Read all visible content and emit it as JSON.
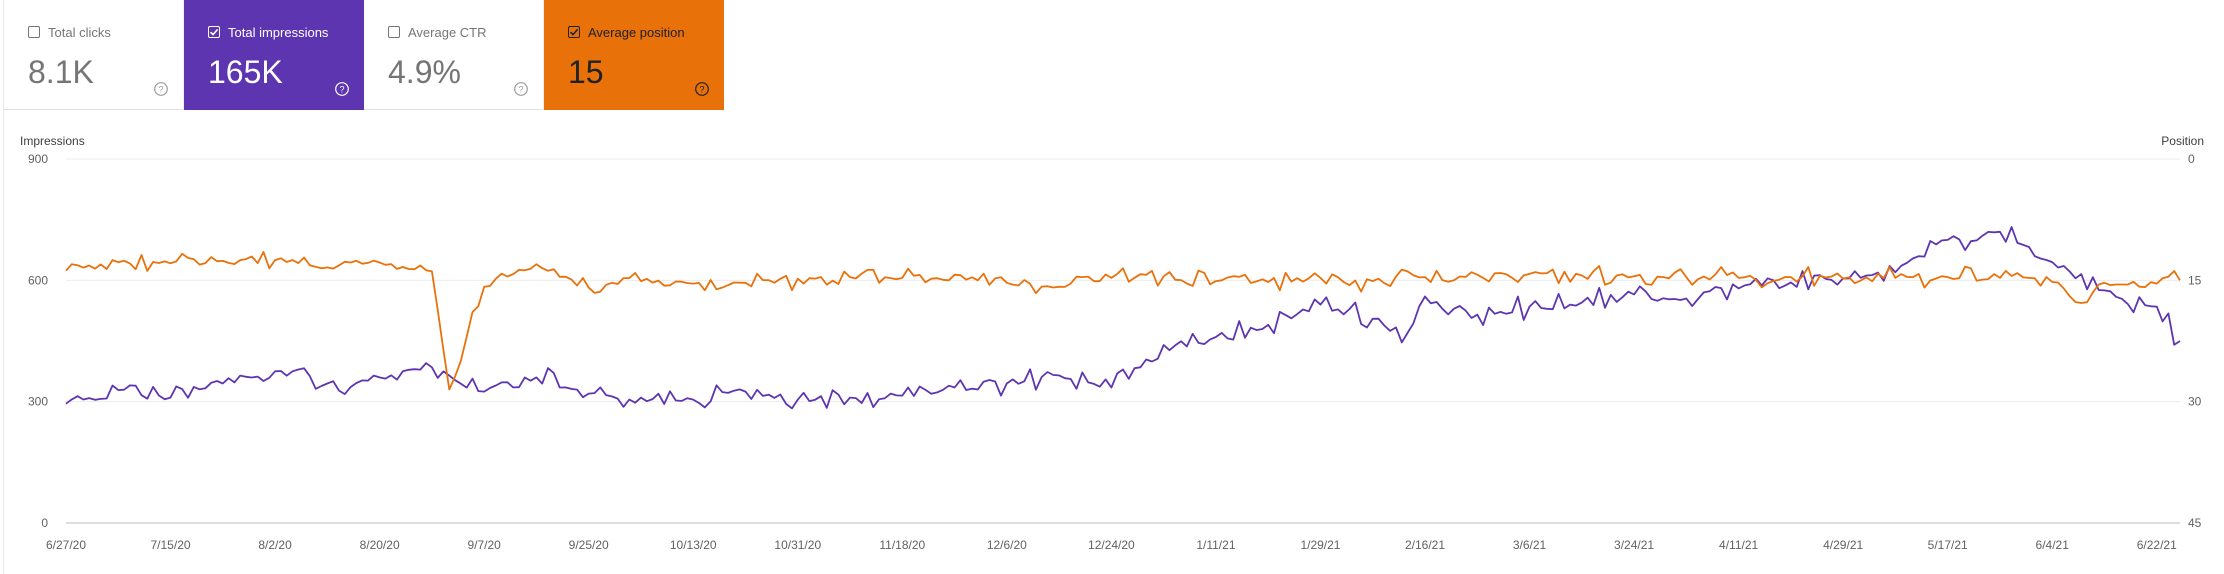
{
  "metrics": [
    {
      "label": "Total clicks",
      "value": "8.1K",
      "checked": false,
      "bg": "#ffffff",
      "fg": "#757575"
    },
    {
      "label": "Total impressions",
      "value": "165K",
      "checked": true,
      "bg": "#5e35b1",
      "fg": "#ffffff"
    },
    {
      "label": "Average CTR",
      "value": "4.9%",
      "checked": false,
      "bg": "#ffffff",
      "fg": "#757575"
    },
    {
      "label": "Average position",
      "value": "15",
      "checked": true,
      "bg": "#e8710a",
      "fg": "#202124"
    }
  ],
  "chart_data": {
    "type": "line",
    "left_axis_label": "Impressions",
    "right_axis_label": "Position",
    "left_ticks": [
      "900",
      "600",
      "300",
      "0"
    ],
    "right_ticks": [
      "0",
      "15",
      "30",
      "45"
    ],
    "left_range": [
      0,
      900
    ],
    "right_range": [
      45,
      0
    ],
    "right_axis_inverted": true,
    "x_tick_labels": [
      "6/27/20",
      "7/15/20",
      "8/2/20",
      "8/20/20",
      "9/7/20",
      "9/25/20",
      "10/13/20",
      "10/31/20",
      "11/18/20",
      "12/6/20",
      "12/24/20",
      "1/11/21",
      "1/29/21",
      "2/16/21",
      "3/6/21",
      "3/24/21",
      "4/11/21",
      "4/29/21",
      "5/17/21",
      "6/4/21",
      "6/22/21"
    ],
    "x_range": [
      "6/27/20",
      "6/26/21"
    ],
    "grid": true,
    "series": [
      {
        "name": "Total impressions",
        "axis": "left",
        "color": "#5e35b1",
        "points": [
          [
            "6/27/20",
            295
          ],
          [
            "7/5/20",
            340
          ],
          [
            "7/15/20",
            310
          ],
          [
            "7/24/20",
            345
          ],
          [
            "8/2/20",
            375
          ],
          [
            "8/11/20",
            345
          ],
          [
            "8/20/20",
            360
          ],
          [
            "8/29/20",
            385
          ],
          [
            "9/7/20",
            325
          ],
          [
            "9/16/20",
            360
          ],
          [
            "9/25/20",
            320
          ],
          [
            "10/4/20",
            310
          ],
          [
            "10/13/20",
            305
          ],
          [
            "10/22/20",
            325
          ],
          [
            "10/31/20",
            305
          ],
          [
            "11/9/20",
            310
          ],
          [
            "11/18/20",
            315
          ],
          [
            "11/27/20",
            335
          ],
          [
            "12/1/20",
            330
          ],
          [
            "12/6/20",
            345
          ],
          [
            "12/15/20",
            365
          ],
          [
            "12/24/20",
            335
          ],
          [
            "1/2/21",
            440
          ],
          [
            "1/11/21",
            460
          ],
          [
            "1/20/21",
            490
          ],
          [
            "1/29/21",
            540
          ],
          [
            "2/7/21",
            505
          ],
          [
            "2/13/21",
            470
          ],
          [
            "2/16/21",
            560
          ],
          [
            "2/25/21",
            515
          ],
          [
            "3/6/21",
            535
          ],
          [
            "3/15/21",
            545
          ],
          [
            "3/24/21",
            565
          ],
          [
            "4/2/21",
            555
          ],
          [
            "4/11/21",
            580
          ],
          [
            "4/20/21",
            595
          ],
          [
            "4/29/21",
            605
          ],
          [
            "5/8/21",
            620
          ],
          [
            "5/17/21",
            700
          ],
          [
            "5/26/21",
            720
          ],
          [
            "6/4/21",
            645
          ],
          [
            "6/13/21",
            575
          ],
          [
            "6/22/21",
            535
          ],
          [
            "6/26/21",
            450
          ]
        ]
      },
      {
        "name": "Average position",
        "axis": "right",
        "color": "#e8710a",
        "points": [
          [
            "6/27/20",
            13.8
          ],
          [
            "7/5/20",
            12.5
          ],
          [
            "7/15/20",
            12.9
          ],
          [
            "7/24/20",
            12.6
          ],
          [
            "8/2/20",
            12.5
          ],
          [
            "8/11/20",
            13.4
          ],
          [
            "8/20/20",
            12.8
          ],
          [
            "8/29/20",
            13.9
          ],
          [
            "9/1/20",
            28.5
          ],
          [
            "9/7/20",
            15.8
          ],
          [
            "9/16/20",
            13.0
          ],
          [
            "9/25/20",
            15.9
          ],
          [
            "10/4/20",
            15.1
          ],
          [
            "10/13/20",
            15.4
          ],
          [
            "10/22/20",
            15.3
          ],
          [
            "10/31/20",
            14.8
          ],
          [
            "11/9/20",
            14.6
          ],
          [
            "11/18/20",
            14.7
          ],
          [
            "11/27/20",
            14.3
          ],
          [
            "12/6/20",
            15.3
          ],
          [
            "12/15/20",
            15.8
          ],
          [
            "12/24/20",
            14.7
          ],
          [
            "1/2/21",
            14.5
          ],
          [
            "1/11/21",
            15.1
          ],
          [
            "1/20/21",
            15.2
          ],
          [
            "1/29/21",
            14.7
          ],
          [
            "2/7/21",
            15.1
          ],
          [
            "2/16/21",
            14.6
          ],
          [
            "2/25/21",
            14.3
          ],
          [
            "3/6/21",
            14.2
          ],
          [
            "3/15/21",
            14.4
          ],
          [
            "3/24/21",
            14.5
          ],
          [
            "4/2/21",
            14.6
          ],
          [
            "4/11/21",
            14.7
          ],
          [
            "4/20/21",
            14.6
          ],
          [
            "4/29/21",
            14.8
          ],
          [
            "5/8/21",
            14.7
          ],
          [
            "5/17/21",
            14.6
          ],
          [
            "5/26/21",
            14.7
          ],
          [
            "6/4/21",
            15.2
          ],
          [
            "6/9/21",
            17.8
          ],
          [
            "6/13/21",
            15.3
          ],
          [
            "6/22/21",
            15.4
          ],
          [
            "6/26/21",
            15.0
          ]
        ]
      }
    ]
  }
}
